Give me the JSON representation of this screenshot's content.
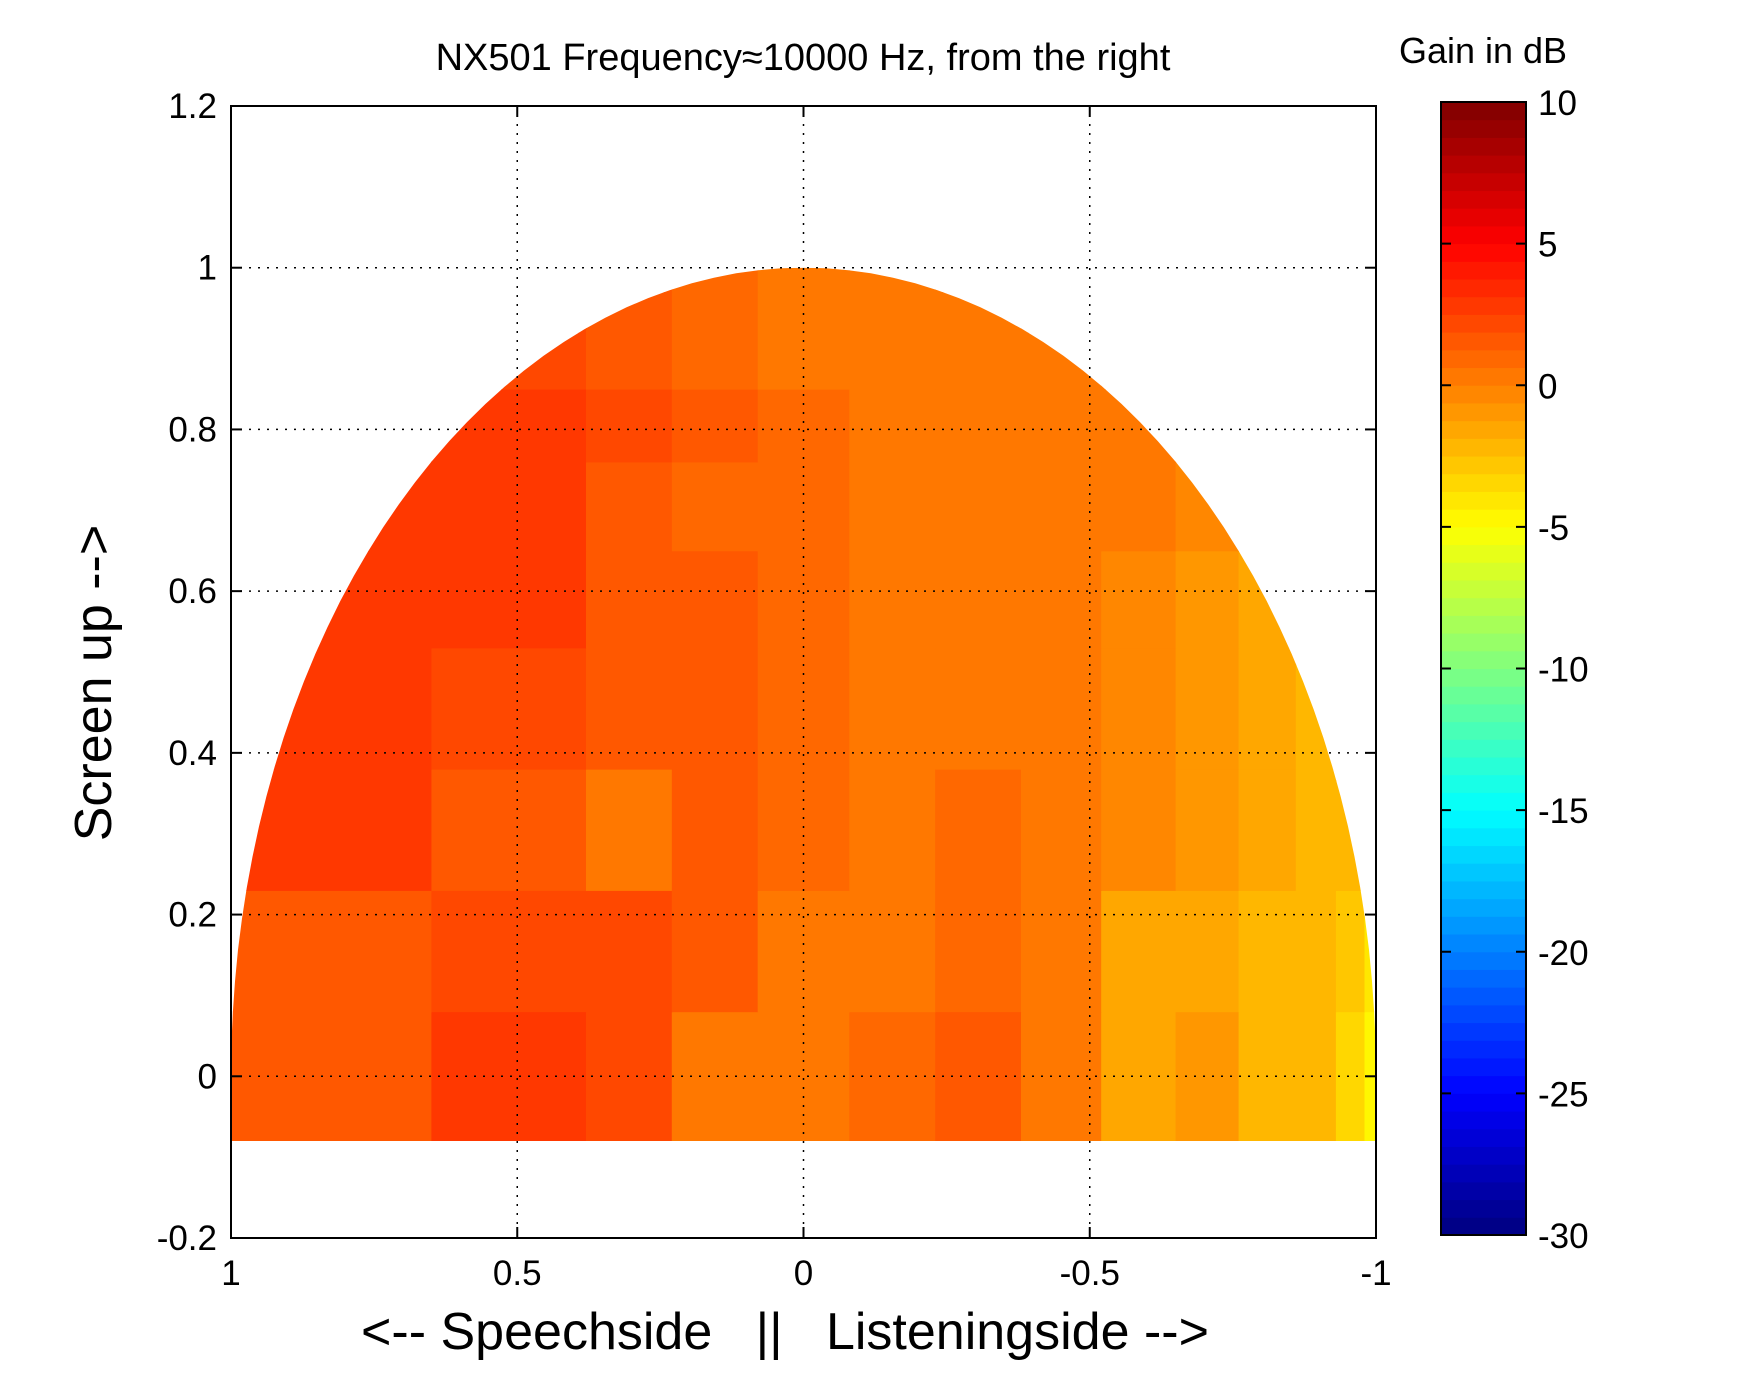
{
  "chart_data": {
    "type": "heatmap",
    "title": "NX501 Frequency≈10000 Hz, from the right",
    "xlabel": "<-- Speechside   ||   Listeningside -->",
    "ylabel": "Screen up -->",
    "xlim": [
      1,
      -1
    ],
    "ylim": [
      -0.2,
      1.2
    ],
    "x_ticks": [
      1,
      0.5,
      0,
      -0.5,
      -1
    ],
    "x_tick_labels": [
      "1",
      "0.5",
      "0",
      "-0.5",
      "-1"
    ],
    "y_ticks": [
      1.2,
      1,
      0.8,
      0.6,
      0.4,
      0.2,
      0,
      -0.2
    ],
    "y_tick_labels": [
      "1.2",
      "1",
      "0.8",
      "0.6",
      "0.4",
      "0.2",
      "0",
      "-0.2"
    ],
    "grid": true,
    "colorbar": {
      "title": "Gain in dB",
      "colormap": "jet",
      "range": [
        -30,
        10
      ],
      "ticks": [
        10,
        5,
        0,
        -5,
        -10,
        -15,
        -20,
        -25,
        -30
      ],
      "tick_labels": [
        "10",
        "5",
        "0",
        "-5",
        "-10",
        "-15",
        "-20",
        "-25",
        "-30"
      ]
    },
    "surface": {
      "description_units": "gain in dB per patch, rows from bottom to top",
      "x_columns": [
        1,
        0.65,
        0.38,
        0.23,
        0.08,
        -0.08,
        -0.23,
        -0.38,
        -0.52,
        -0.65,
        -0.76,
        -0.86,
        -0.93,
        -0.98,
        -1
      ],
      "rows": [
        {
          "y": [
            -0.08,
            0.08
          ],
          "gains": [
            1.5,
            3.0,
            2.0,
            0.5,
            0.5,
            1.0,
            1.5,
            0.5,
            -1.5,
            -1.0,
            -2.0,
            -2.5,
            -3.5,
            -4.5
          ]
        },
        {
          "y": [
            0.08,
            0.23
          ],
          "gains": [
            1.5,
            2.0,
            2.0,
            1.5,
            0.5,
            0.5,
            1.0,
            0.5,
            -1.5,
            -1.5,
            -2.0,
            -2.5,
            -3.0,
            -4.0
          ]
        },
        {
          "y": [
            0.23,
            0.38
          ],
          "gains": [
            3.0,
            1.5,
            0.5,
            1.5,
            1.0,
            0.5,
            1.0,
            0.5,
            -0.5,
            -1.0,
            -1.5,
            -2.0,
            -2.5,
            -3.0
          ]
        },
        {
          "y": [
            0.38,
            0.53
          ],
          "gains": [
            3.0,
            2.0,
            1.5,
            1.5,
            1.0,
            0.5,
            0.5,
            0.0,
            -0.5,
            -1.0,
            -1.5,
            -2.0,
            -2.5,
            -3.0
          ]
        },
        {
          "y": [
            0.53,
            0.65
          ],
          "gains": [
            3.0,
            2.5,
            1.5,
            1.5,
            1.0,
            0.5,
            0.5,
            0.0,
            -0.5,
            -1.0,
            -1.5,
            -2.0,
            -2.5,
            -3.0
          ]
        },
        {
          "y": [
            0.65,
            0.76
          ],
          "gains": [
            3.0,
            2.5,
            1.5,
            1.0,
            1.0,
            0.5,
            0.5,
            0.0,
            0.0,
            -0.5,
            -1.0,
            -1.0,
            -1.5,
            -2.0
          ]
        },
        {
          "y": [
            0.76,
            0.85
          ],
          "gains": [
            2.5,
            2.5,
            2.0,
            1.5,
            1.0,
            0.5,
            0.5,
            0.0,
            0.0,
            -0.5,
            -0.5,
            -0.5,
            -1.0,
            -1.0
          ]
        },
        {
          "y": [
            0.85,
            0.92
          ],
          "gains": [
            2.5,
            2.0,
            1.5,
            1.0,
            0.5,
            0.5,
            0.0,
            0.0,
            0.0,
            0.0,
            0.0,
            0.0,
            0.0,
            0.0
          ]
        },
        {
          "y": [
            0.92,
            0.97
          ],
          "gains": [
            2.0,
            2.0,
            1.5,
            1.0,
            0.5,
            0.0,
            0.5,
            0.0,
            0.0,
            0.0,
            0.0,
            0.0,
            0.0,
            0.0
          ]
        },
        {
          "y": [
            0.97,
            1.0
          ],
          "gains": [
            1.5,
            1.5,
            1.5,
            1.0,
            0.5,
            0.0,
            0.5,
            0.5,
            0.5,
            0.5,
            0.5,
            0.5,
            0.5,
            0.5
          ]
        }
      ]
    }
  }
}
